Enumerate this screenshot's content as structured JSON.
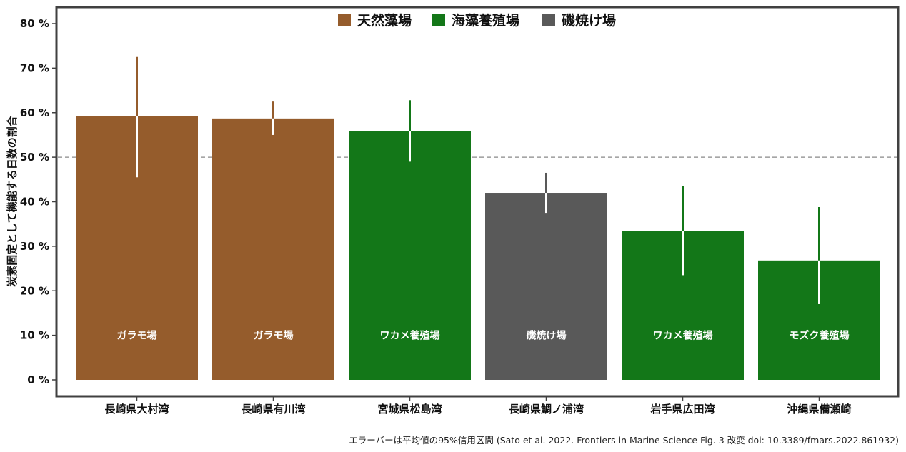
{
  "chart_data": {
    "type": "bar",
    "title": "",
    "xlabel": "",
    "ylabel": "炭素固定として機能する日数の割合",
    "ylim": [
      0,
      80
    ],
    "yticks": [
      0,
      10,
      20,
      30,
      40,
      50,
      60,
      70,
      80
    ],
    "ytick_suffix": " %",
    "reference_line": 50,
    "grid": false,
    "legend_position": "top-center",
    "legend": [
      {
        "label": "天然藻場",
        "color": "#955C2C"
      },
      {
        "label": "海藻養殖場",
        "color": "#137718"
      },
      {
        "label": "磯焼け場",
        "color": "#595959"
      }
    ],
    "bars": [
      {
        "category": "長崎県大村湾",
        "label": "ガラモ場",
        "value": 59.3,
        "err_low": 45.5,
        "err_high": 72.5,
        "color": "#955C2C",
        "err_color": "#ffffff"
      },
      {
        "category": "長崎県有川湾",
        "label": "ガラモ場",
        "value": 58.7,
        "err_low": 55.0,
        "err_high": 62.5,
        "color": "#955C2C",
        "err_color": "#ffffff"
      },
      {
        "category": "宮城県松島湾",
        "label": "ワカメ養殖場",
        "value": 55.8,
        "err_low": 49.0,
        "err_high": 62.8,
        "color": "#137718",
        "err_color": "#ffffff"
      },
      {
        "category": "長崎県鯛ノ浦湾",
        "label": "磯焼け場",
        "value": 42.0,
        "err_low": 37.5,
        "err_high": 46.5,
        "color": "#595959",
        "err_color": "#ffffff"
      },
      {
        "category": "岩手県広田湾",
        "label": "ワカメ養殖場",
        "value": 33.5,
        "err_low": 23.5,
        "err_high": 43.5,
        "color": "#137718",
        "err_color": "#ffffff"
      },
      {
        "category": "沖縄県備瀬崎",
        "label": "モズク養殖場",
        "value": 26.8,
        "err_low": 17.0,
        "err_high": 38.8,
        "color": "#137718",
        "err_color": "#ffffff"
      }
    ],
    "caption": "エラーバーは平均値の95%信用区間 (Sato et al. 2022. Frontiers in Marine Science Fig. 3 改変 doi: 10.3389/fmars.2022.861932)"
  }
}
